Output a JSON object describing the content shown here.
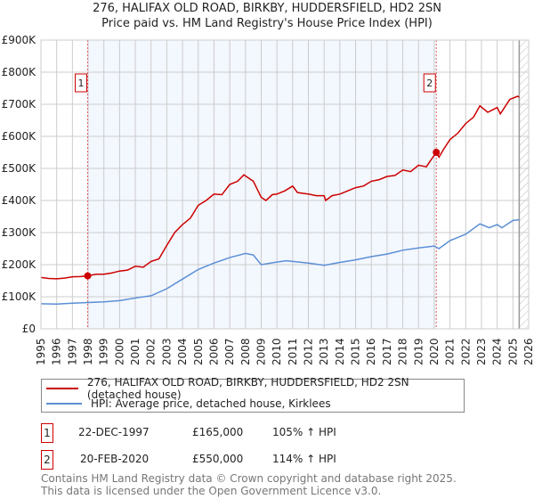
{
  "title": "276, HALIFAX OLD ROAD, BIRKBY, HUDDERSFIELD, HD2 2SN",
  "subtitle": "Price paid vs. HM Land Registry's House Price Index (HPI)",
  "chart_data": {
    "type": "line",
    "xlim": [
      1995,
      2026
    ],
    "ylim": [
      0,
      900000
    ],
    "yticks": [
      0,
      100000,
      200000,
      300000,
      400000,
      500000,
      600000,
      700000,
      800000,
      900000
    ],
    "ytick_labels": [
      "£0",
      "£100K",
      "£200K",
      "£300K",
      "£400K",
      "£500K",
      "£600K",
      "£700K",
      "£800K",
      "£900K"
    ],
    "xticks": [
      1995,
      1996,
      1997,
      1998,
      1999,
      2000,
      2001,
      2002,
      2003,
      2004,
      2005,
      2006,
      2007,
      2008,
      2009,
      2010,
      2011,
      2012,
      2013,
      2014,
      2015,
      2016,
      2017,
      2018,
      2019,
      2020,
      2021,
      2022,
      2023,
      2024,
      2025,
      2026
    ],
    "grid": true,
    "shaded_range": [
      1997.97,
      2020.13
    ],
    "hatched_from": 2025.4,
    "series": [
      {
        "name": "276, HALIFAX OLD ROAD, BIRKBY, HUDDERSFIELD, HD2 2SN (detached house)",
        "color": "#cc0000",
        "x": [
          1995,
          1995.5,
          1996,
          1996.5,
          1997,
          1997.5,
          1997.97,
          1998.5,
          1999,
          1999.5,
          2000,
          2000.5,
          2001,
          2001.5,
          2002,
          2002.5,
          2003,
          2003.5,
          2004,
          2004.5,
          2005,
          2005.5,
          2006,
          2006.5,
          2007,
          2007.5,
          2007.9,
          2008.5,
          2009,
          2009.3,
          2009.7,
          2010,
          2010.5,
          2011,
          2011.3,
          2011.7,
          2012,
          2012.5,
          2013,
          2013.1,
          2013.5,
          2014,
          2014.5,
          2015,
          2015.5,
          2016,
          2016.5,
          2017,
          2017.5,
          2018,
          2018.5,
          2019,
          2019.5,
          2019.7,
          2020.13,
          2020.3,
          2020.6,
          2021,
          2021.5,
          2022,
          2022.5,
          2022.9,
          2023.4,
          2023.8,
          2024,
          2024.2,
          2024.8,
          2025.3,
          2025.4
        ],
        "y": [
          160000,
          157000,
          156000,
          158000,
          162000,
          163000,
          165000,
          170000,
          170000,
          174000,
          180000,
          183000,
          195000,
          192000,
          210000,
          218000,
          260000,
          300000,
          325000,
          345000,
          385000,
          400000,
          420000,
          418000,
          450000,
          460000,
          480000,
          460000,
          410000,
          400000,
          418000,
          420000,
          430000,
          445000,
          425000,
          422000,
          420000,
          415000,
          415000,
          400000,
          415000,
          420000,
          430000,
          440000,
          445000,
          460000,
          465000,
          475000,
          478000,
          495000,
          490000,
          510000,
          505000,
          520000,
          550000,
          535000,
          560000,
          590000,
          610000,
          640000,
          660000,
          695000,
          675000,
          685000,
          690000,
          670000,
          715000,
          725000,
          722000
        ]
      },
      {
        "name": "HPI: Average price, detached house, Kirklees",
        "color": "#5b8fd6",
        "x": [
          1995,
          1996,
          1997,
          1998,
          1999,
          2000,
          2001,
          2002,
          2003,
          2004,
          2005,
          2006,
          2007,
          2008,
          2008.5,
          2009,
          2010,
          2010.6,
          2011,
          2012,
          2013,
          2014,
          2015,
          2016,
          2017,
          2018,
          2019,
          2020,
          2020.3,
          2021,
          2022,
          2022.9,
          2023.5,
          2024,
          2024.3,
          2025,
          2025.4
        ],
        "y": [
          78000,
          77000,
          80000,
          82000,
          84000,
          88000,
          96000,
          103000,
          125000,
          155000,
          185000,
          205000,
          222000,
          235000,
          230000,
          200000,
          208000,
          212000,
          210000,
          205000,
          198000,
          207000,
          215000,
          225000,
          233000,
          245000,
          252000,
          258000,
          250000,
          275000,
          295000,
          327000,
          315000,
          325000,
          315000,
          338000,
          340000
        ]
      }
    ],
    "annotations": [
      {
        "label": "1",
        "x": 1997.97,
        "y": 165000
      },
      {
        "label": "2",
        "x": 2020.13,
        "y": 550000
      }
    ]
  },
  "legend": {
    "red": "276, HALIFAX OLD ROAD, BIRKBY, HUDDERSFIELD, HD2 2SN (detached house)",
    "blue": "HPI: Average price, detached house, Kirklees"
  },
  "sales": [
    {
      "num": "1",
      "date": "22-DEC-1997",
      "price": "£165,000",
      "hpi": "105% ↑ HPI"
    },
    {
      "num": "2",
      "date": "20-FEB-2020",
      "price": "£550,000",
      "hpi": "114% ↑ HPI"
    }
  ],
  "footer": [
    "Contains HM Land Registry data © Crown copyright and database right 2025.",
    "This data is licensed under the Open Government Licence v3.0."
  ]
}
